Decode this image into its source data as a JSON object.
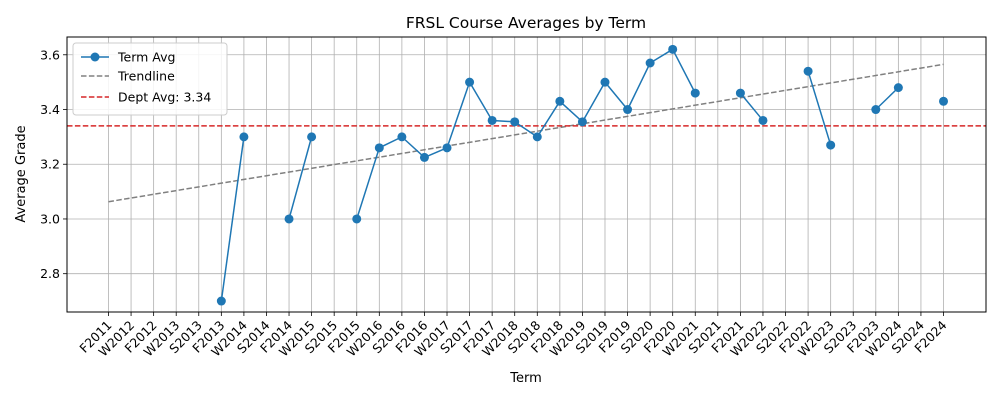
{
  "chart_data": {
    "type": "line",
    "title": "FRSL Course Averages by Term",
    "xlabel": "Term",
    "ylabel": "Average Grade",
    "categories": [
      "F2011",
      "W2012",
      "F2012",
      "W2013",
      "S2013",
      "F2013",
      "W2014",
      "S2014",
      "F2014",
      "W2015",
      "S2015",
      "F2015",
      "W2016",
      "S2016",
      "F2016",
      "W2017",
      "S2017",
      "F2017",
      "W2018",
      "S2018",
      "F2018",
      "W2019",
      "S2019",
      "F2019",
      "S2020",
      "F2020",
      "W2021",
      "S2021",
      "F2021",
      "W2022",
      "S2022",
      "F2022",
      "W2023",
      "S2023",
      "F2023",
      "W2024",
      "S2024",
      "F2024"
    ],
    "ylim": [
      2.66,
      3.665
    ],
    "yticks": [
      "2.8",
      "3.0",
      "3.2",
      "3.4",
      "3.6"
    ],
    "grid": true,
    "legend_position": "top-left",
    "series": [
      {
        "name": "Term Avg",
        "color": "#1f77b4",
        "marker": "circle",
        "values": [
          null,
          null,
          null,
          null,
          null,
          2.7,
          3.3,
          null,
          3.0,
          3.3,
          null,
          3.0,
          3.26,
          3.3,
          3.225,
          3.26,
          3.5,
          3.36,
          3.355,
          3.3,
          3.43,
          3.355,
          3.5,
          3.4,
          3.57,
          3.62,
          3.46,
          null,
          3.46,
          3.36,
          null,
          3.54,
          3.27,
          null,
          3.4,
          3.48,
          null,
          3.43
        ]
      },
      {
        "name": "Trendline",
        "color": "#808080",
        "dash": "dashed",
        "start": 3.063,
        "end": 3.565
      },
      {
        "name": "Dept Avg: 3.34",
        "color": "#d62728",
        "dash": "dashed",
        "value": 3.34
      }
    ]
  }
}
